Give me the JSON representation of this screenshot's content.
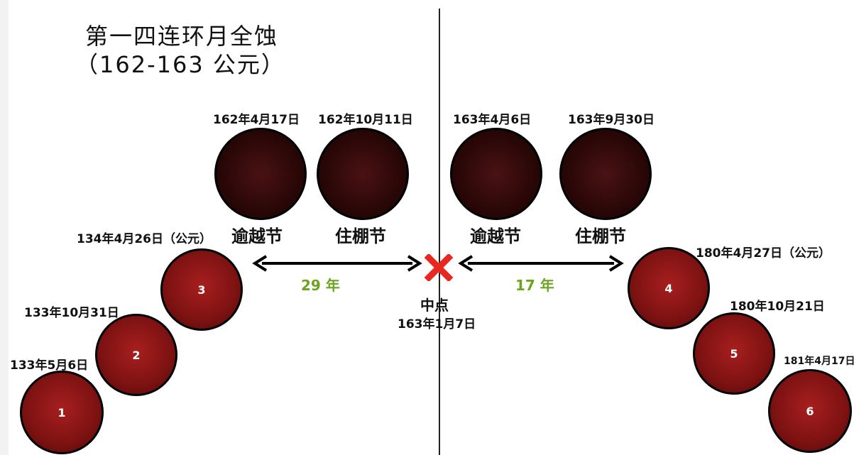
{
  "title": {
    "line1": "第一四连环月全蚀",
    "line2": "（162-163 公元）"
  },
  "center": {
    "label": "中点",
    "date": "163年1月7日",
    "mark": "X"
  },
  "top_eclipses": [
    {
      "date": "162年4月17日"
    },
    {
      "date": "162年10月11日"
    },
    {
      "date": "163年4月6日"
    },
    {
      "date": "163年9月30日"
    }
  ],
  "festivals": {
    "left1": "逾越节",
    "left2": "住棚节",
    "right1": "逾越节",
    "right2": "住棚节"
  },
  "spans": {
    "left": "29 年",
    "right": "17 年"
  },
  "side_eclipses": [
    {
      "num": "1",
      "date": "133年5月6日"
    },
    {
      "num": "2",
      "date": "133年10月31日"
    },
    {
      "num": "3",
      "date": "134年4月26日（公元）"
    },
    {
      "num": "4",
      "date": "180年4月27日（公元）"
    },
    {
      "num": "5",
      "date": "180年10月21日"
    },
    {
      "num": "6",
      "date": "181年4月17日"
    }
  ],
  "colors": {
    "accent_green": "#6aa51d",
    "mark_red": "#e8281e",
    "moon_red": "#8a1515",
    "moon_dark": "#2a0707"
  }
}
